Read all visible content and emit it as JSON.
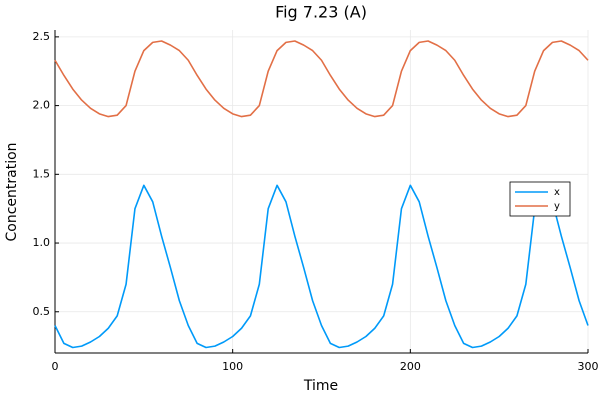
{
  "chart_data": {
    "type": "line",
    "title": "Fig 7.23 (A)",
    "x_label": "Time",
    "y_label": "Concentration",
    "x": [
      0,
      5,
      10,
      15,
      20,
      25,
      30,
      35,
      40,
      45,
      50,
      55,
      60,
      65,
      70,
      75,
      80,
      85,
      90,
      95,
      100,
      105,
      110,
      115,
      120,
      125,
      130,
      135,
      140,
      145,
      150,
      155,
      160,
      165,
      170,
      175,
      180,
      185,
      190,
      195,
      200,
      205,
      210,
      215,
      220,
      225,
      230,
      235,
      240,
      245,
      250,
      255,
      260,
      265,
      270,
      275,
      280,
      285,
      290,
      295,
      300
    ],
    "series": [
      {
        "name": "x",
        "color": "#009af9",
        "values": [
          0.4,
          0.27,
          0.24,
          0.25,
          0.28,
          0.32,
          0.38,
          0.47,
          0.7,
          1.25,
          1.42,
          1.3,
          1.05,
          0.82,
          0.58,
          0.4,
          0.27,
          0.24,
          0.25,
          0.28,
          0.32,
          0.38,
          0.47,
          0.7,
          1.25,
          1.42,
          1.3,
          1.05,
          0.82,
          0.58,
          0.4,
          0.27,
          0.24,
          0.25,
          0.28,
          0.32,
          0.38,
          0.47,
          0.7,
          1.25,
          1.42,
          1.3,
          1.05,
          0.82,
          0.58,
          0.4,
          0.27,
          0.24,
          0.25,
          0.28,
          0.32,
          0.38,
          0.47,
          0.7,
          1.25,
          1.42,
          1.3,
          1.05,
          0.82,
          0.58,
          0.4
        ]
      },
      {
        "name": "y",
        "color": "#e26f46",
        "values": [
          2.33,
          2.22,
          2.12,
          2.04,
          1.98,
          1.94,
          1.92,
          1.93,
          2.0,
          2.25,
          2.4,
          2.46,
          2.47,
          2.44,
          2.4,
          2.33,
          2.22,
          2.12,
          2.04,
          1.98,
          1.94,
          1.92,
          1.93,
          2.0,
          2.25,
          2.4,
          2.46,
          2.47,
          2.44,
          2.4,
          2.33,
          2.22,
          2.12,
          2.04,
          1.98,
          1.94,
          1.92,
          1.93,
          2.0,
          2.25,
          2.4,
          2.46,
          2.47,
          2.44,
          2.4,
          2.33,
          2.22,
          2.12,
          2.04,
          1.98,
          1.94,
          1.92,
          1.93,
          2.0,
          2.25,
          2.4,
          2.46,
          2.47,
          2.44,
          2.4,
          2.33
        ]
      }
    ],
    "xlim": [
      0,
      300
    ],
    "xticks": [
      0,
      100,
      200,
      300
    ],
    "ylim": [
      0.2,
      2.55
    ],
    "yticks": [
      0.5,
      {
        "value": 1.0,
        "label": "1.0"
      },
      1.5,
      {
        "value": 2.0,
        "label": "2.0"
      },
      2.5
    ],
    "grid": true,
    "legend": "right"
  }
}
